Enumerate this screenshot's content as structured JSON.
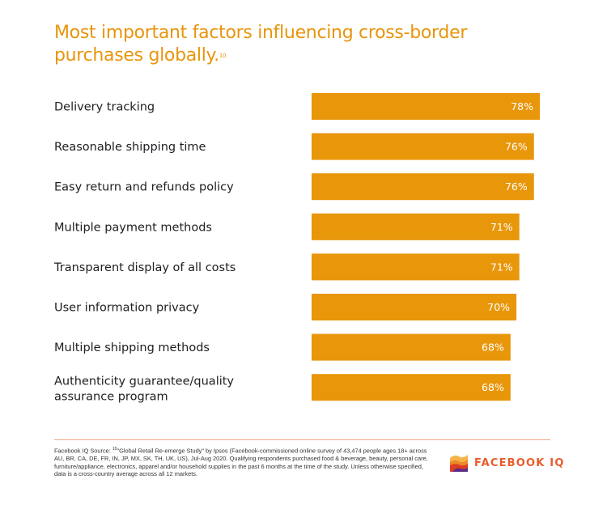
{
  "chart_data": {
    "type": "bar",
    "orientation": "horizontal",
    "title": "Most important factors influencing cross-border purchases globally.",
    "title_footnote": "10",
    "categories": [
      "Delivery tracking",
      "Reasonable shipping time",
      "Easy return and refunds policy",
      "Multiple payment methods",
      "Transparent display of all costs",
      "User information privacy",
      "Multiple shipping methods",
      "Authenticity guarantee/quality assurance program"
    ],
    "values": [
      78,
      76,
      76,
      71,
      71,
      70,
      68,
      68
    ],
    "value_suffix": "%",
    "xlim": [
      0,
      78
    ],
    "grid": false,
    "bar_color": "#E8960A",
    "label_color": "#FFFFFF"
  },
  "footer": {
    "source_prefix": "Facebook IQ Source:",
    "footnote_mark": "10",
    "source_text": "\"Global Retail Re-emerge Study\" by Ipsos (Facebook-commissioned online survey of 43,474 people ages 18+ across AU, BR, CA, DE, FR, IN, JP, MX, SK, TH, UK, US), Jul-Aug 2020. Qualifying respondents purchased food & beverage, beauty, personal care, furniture/appliance, electronics, apparel and/or household supplies in the past 6 months at the time of the study. Unless otherwise specified, data is a cross-country average across all 12 markets.",
    "logo_text": "FACEBOOK IQ",
    "accent_color": "#E85C2C"
  }
}
